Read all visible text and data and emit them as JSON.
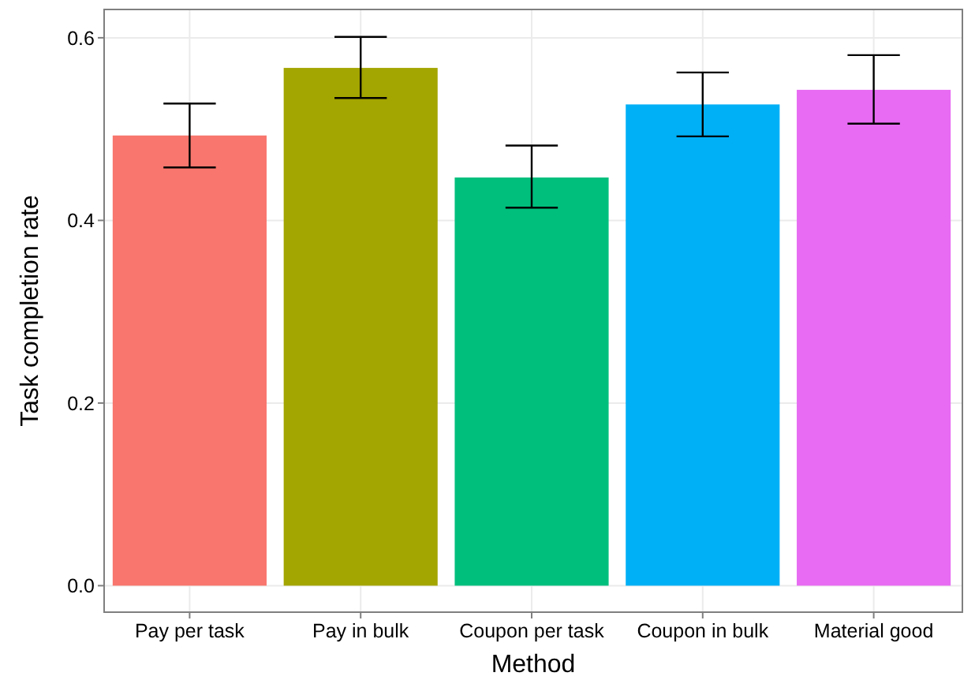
{
  "chart_data": {
    "type": "bar",
    "xlabel": "Method",
    "ylabel": "Task completion rate",
    "categories": [
      "Pay per task",
      "Pay in bulk",
      "Coupon per task",
      "Coupon in bulk",
      "Material good"
    ],
    "values": [
      0.493,
      0.567,
      0.447,
      0.527,
      0.543
    ],
    "colors": [
      "#f8766d",
      "#a3a500",
      "#00bf7d",
      "#00b0f6",
      "#e76bf3"
    ],
    "errors": [
      [
        0.458,
        0.528
      ],
      [
        0.534,
        0.601
      ],
      [
        0.414,
        0.482
      ],
      [
        0.492,
        0.562
      ],
      [
        0.506,
        0.581
      ]
    ],
    "ylim": [
      -0.029,
      0.631
    ],
    "yticks": [
      {
        "value": 0,
        "label": "0.0"
      },
      {
        "value": 0.2,
        "label": "0.2"
      },
      {
        "value": 0.4,
        "label": "0.4"
      },
      {
        "value": 0.6,
        "label": "0.6"
      }
    ],
    "grid": true
  }
}
